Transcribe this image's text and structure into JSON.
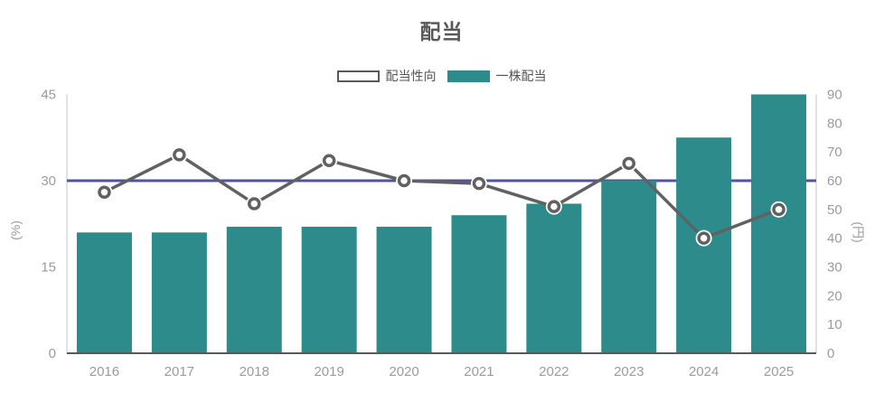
{
  "chart_data": {
    "type": "bar+line",
    "title": "配当",
    "categories": [
      "2016",
      "2017",
      "2018",
      "2019",
      "2020",
      "2021",
      "2022",
      "2023",
      "2024",
      "2025"
    ],
    "series": [
      {
        "name": "配当性向",
        "type": "line",
        "axis": "left",
        "unit": "%",
        "values": [
          28,
          34.5,
          26,
          33.5,
          30,
          29.5,
          25.5,
          33,
          20,
          25
        ]
      },
      {
        "name": "一株配当",
        "type": "bar",
        "axis": "right",
        "unit": "円",
        "values": [
          42,
          42,
          44,
          44,
          44,
          48,
          52,
          60,
          75,
          90
        ]
      }
    ],
    "left_axis": {
      "label": "(%)",
      "ticks": [
        0,
        15,
        30,
        45
      ],
      "range": [
        0,
        45
      ]
    },
    "right_axis": {
      "label": "(円)",
      "ticks": [
        0,
        10,
        20,
        30,
        40,
        50,
        60,
        70,
        80,
        90
      ],
      "range": [
        0,
        90
      ]
    },
    "reference_line": {
      "axis": "left",
      "value": 30
    },
    "legend_position": "top-center",
    "grid": false
  },
  "colors": {
    "bar": "#2e8b8c",
    "line": "#616161",
    "marker_fill": "#ffffff",
    "marker_ring": "#616161",
    "reference_line": "#5253a3",
    "tick_text": "#9b9b9b",
    "title_text": "#595959",
    "axis_line_light": "#d9d9d9",
    "axis_line_dark": "#595959"
  }
}
